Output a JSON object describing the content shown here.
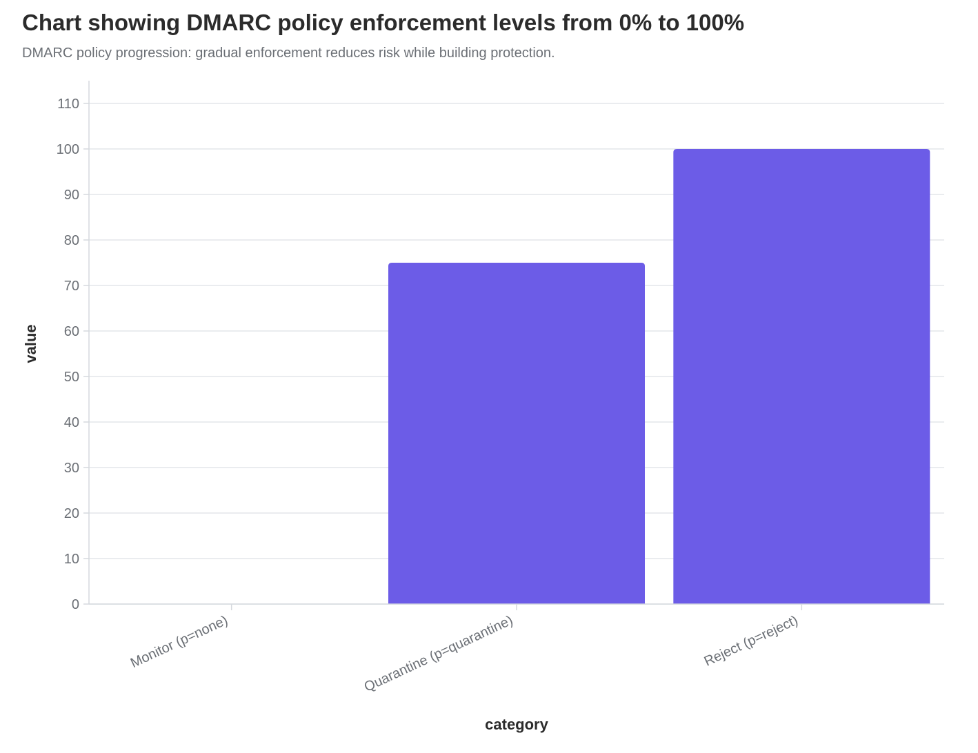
{
  "page": {
    "title": "Chart showing DMARC policy enforcement levels from 0% to 100%",
    "subtitle": "DMARC policy progression: gradual enforcement reduces risk while building protection."
  },
  "chart_data": {
    "type": "bar",
    "title": "Chart showing DMARC policy enforcement levels from 0% to 100%",
    "subtitle": "DMARC policy progression: gradual enforcement reduces risk while building protection.",
    "categories": [
      "Monitor (p=none)",
      "Quarantine (p=quarantine)",
      "Reject (p=reject)"
    ],
    "values": [
      0,
      75,
      100
    ],
    "xlabel": "category",
    "ylabel": "value",
    "ylim": [
      0,
      110
    ],
    "yticks": [
      0,
      10,
      20,
      30,
      40,
      50,
      60,
      70,
      80,
      90,
      100,
      110
    ],
    "grid": true,
    "legend": "none",
    "colors": {
      "bar": "#6c5ce7",
      "grid": "#e3e6ea",
      "axis": "#d5d9de",
      "tick_text": "#6b6f75",
      "title_text": "#2b2b2b"
    }
  }
}
